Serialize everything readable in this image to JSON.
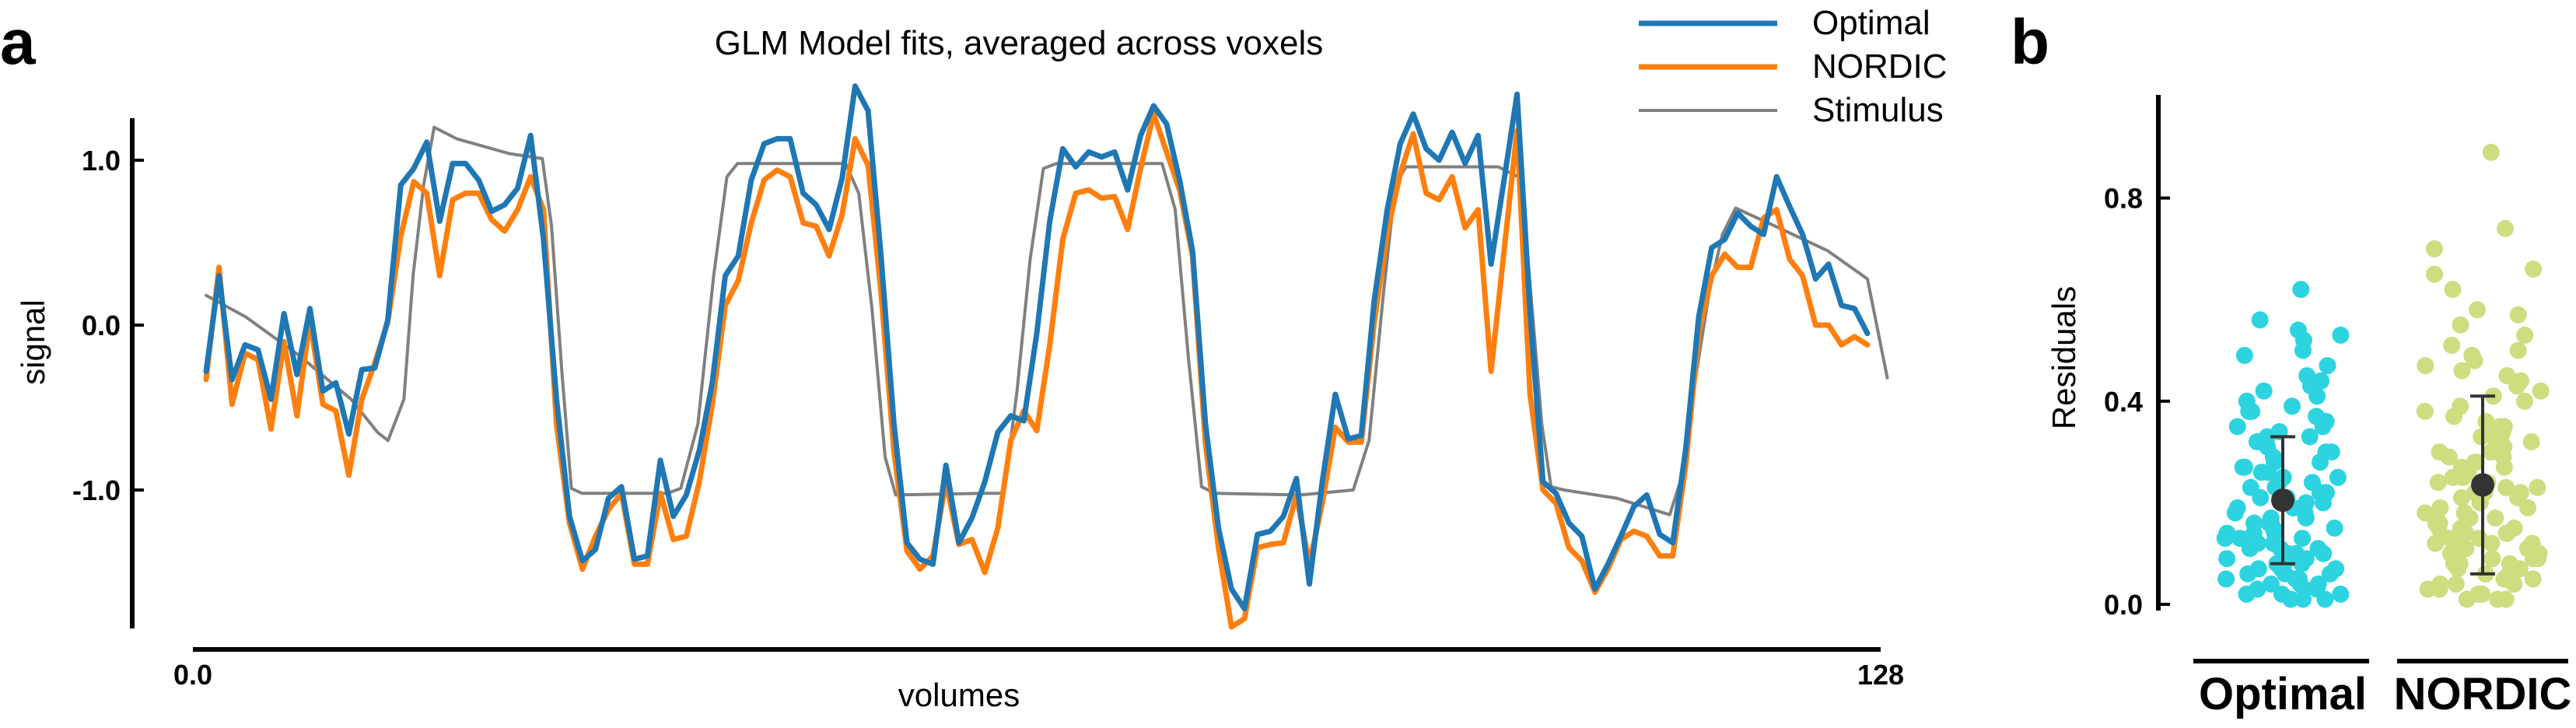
{
  "panel_a_letter": "a",
  "panel_b_letter": "b",
  "chart_data": [
    {
      "type": "line",
      "title": "GLM Model fits, averaged across voxels",
      "xlabel": "volumes",
      "ylabel": "signal",
      "xlim": [
        0,
        128
      ],
      "ylim": [
        -1.75,
        1.25
      ],
      "x_tick_labels": [
        "0.0",
        "128"
      ],
      "y_tick_labels": [
        "1.0",
        "0.0",
        "-1.0"
      ],
      "y_ticks": [
        1.0,
        0.0,
        -1.0
      ],
      "legend_position": "top-right",
      "grid": false,
      "series": [
        {
          "name": "Optimal",
          "color": "#1f77b4",
          "values": [
            -0.28,
            0.3,
            -0.33,
            -0.12,
            -0.15,
            -0.45,
            0.07,
            -0.3,
            0.1,
            -0.4,
            -0.35,
            -0.66,
            -0.27,
            -0.26,
            0.03,
            0.85,
            0.95,
            1.11,
            0.63,
            0.98,
            0.98,
            0.88,
            0.69,
            0.73,
            0.83,
            1.15,
            0.52,
            -0.45,
            -1.16,
            -1.43,
            -1.36,
            -1.05,
            -0.98,
            -1.42,
            -1.4,
            -0.82,
            -1.16,
            -1.03,
            -0.76,
            -0.35,
            0.3,
            0.42,
            0.88,
            1.1,
            1.13,
            1.13,
            0.8,
            0.73,
            0.58,
            0.89,
            1.45,
            1.3,
            0.42,
            -0.6,
            -1.32,
            -1.42,
            -1.45,
            -0.85,
            -1.32,
            -1.17,
            -0.95,
            -0.65,
            -0.55,
            -0.58,
            -0.05,
            0.63,
            1.07,
            0.96,
            1.05,
            1.02,
            1.05,
            0.82,
            1.15,
            1.33,
            1.22,
            0.88,
            0.45,
            -0.6,
            -1.23,
            -1.6,
            -1.72,
            -1.27,
            -1.25,
            -1.16,
            -0.93,
            -1.57,
            -0.95,
            -0.42,
            -0.69,
            -0.67,
            0.15,
            0.7,
            1.1,
            1.28,
            1.07,
            1.0,
            1.17,
            0.98,
            1.15,
            0.37,
            0.88,
            1.4,
            0.08,
            -0.95,
            -1.02,
            -1.2,
            -1.28,
            -1.6,
            -1.45,
            -1.28,
            -1.1,
            -1.03,
            -1.27,
            -1.32,
            -0.75,
            0.05,
            0.47,
            0.52,
            0.68,
            0.6,
            0.55,
            0.9,
            0.72,
            0.55,
            0.28,
            0.37,
            0.12,
            0.1,
            -0.05
          ],
          "values_x": "evenly spaced from 1 to 127"
        },
        {
          "name": "NORDIC",
          "color": "#ff7f0e",
          "values": [
            -0.33,
            0.35,
            -0.48,
            -0.17,
            -0.21,
            -0.63,
            -0.1,
            -0.55,
            0.03,
            -0.48,
            -0.52,
            -0.91,
            -0.45,
            -0.23,
            0.02,
            0.54,
            0.87,
            0.8,
            0.3,
            0.76,
            0.8,
            0.8,
            0.64,
            0.57,
            0.7,
            0.9,
            0.7,
            -0.6,
            -1.2,
            -1.48,
            -1.28,
            -1.12,
            -1.02,
            -1.45,
            -1.45,
            -1.02,
            -1.3,
            -1.28,
            -0.95,
            -0.48,
            0.12,
            0.27,
            0.62,
            0.88,
            0.94,
            0.9,
            0.62,
            0.6,
            0.42,
            0.67,
            1.13,
            0.97,
            0.2,
            -0.77,
            -1.37,
            -1.48,
            -1.4,
            -0.95,
            -1.33,
            -1.3,
            -1.5,
            -1.23,
            -0.7,
            -0.52,
            -0.64,
            -0.12,
            0.52,
            0.8,
            0.82,
            0.77,
            0.78,
            0.58,
            0.95,
            1.28,
            1.05,
            0.82,
            0.42,
            -0.72,
            -1.35,
            -1.83,
            -1.78,
            -1.35,
            -1.33,
            -1.32,
            -1.03,
            -1.45,
            -1.08,
            -0.62,
            -0.71,
            -0.71,
            0.02,
            0.56,
            0.92,
            1.16,
            0.8,
            0.76,
            0.9,
            0.59,
            0.7,
            -0.28,
            0.45,
            1.18,
            -0.42,
            -1.0,
            -1.08,
            -1.35,
            -1.43,
            -1.62,
            -1.48,
            -1.3,
            -1.25,
            -1.28,
            -1.4,
            -1.4,
            -0.85,
            -0.05,
            0.3,
            0.43,
            0.35,
            0.35,
            0.65,
            0.7,
            0.4,
            0.3,
            0.0,
            0.0,
            -0.12,
            -0.07,
            -0.12
          ],
          "values_x": "evenly spaced from 1 to 127"
        },
        {
          "name": "Stimulus",
          "color": "#808080",
          "points": [
            [
              1,
              0.18
            ],
            [
              4,
              0.05
            ],
            [
              8,
              -0.18
            ],
            [
              12,
              -0.45
            ],
            [
              14,
              -0.65
            ],
            [
              14.8,
              -0.7
            ],
            [
              16,
              -0.45
            ],
            [
              16.7,
              0.3
            ],
            [
              17.5,
              0.85
            ],
            [
              18.3,
              1.2
            ],
            [
              20,
              1.13
            ],
            [
              24,
              1.04
            ],
            [
              26.5,
              1.01
            ],
            [
              27.2,
              0.6
            ],
            [
              28,
              -0.3
            ],
            [
              28.7,
              -0.99
            ],
            [
              29.5,
              -1.02
            ],
            [
              36,
              -1.02
            ],
            [
              37,
              -0.99
            ],
            [
              38.3,
              -0.6
            ],
            [
              39.5,
              0.3
            ],
            [
              40.5,
              0.9
            ],
            [
              41.3,
              0.98
            ],
            [
              49.5,
              0.98
            ],
            [
              50.5,
              0.8
            ],
            [
              51.5,
              0.1
            ],
            [
              52.5,
              -0.8
            ],
            [
              53.3,
              -1.03
            ],
            [
              60,
              -1.02
            ],
            [
              61.5,
              -1.02
            ],
            [
              62.5,
              -0.4
            ],
            [
              63.5,
              0.4
            ],
            [
              64.5,
              0.95
            ],
            [
              65.5,
              0.98
            ],
            [
              73.5,
              0.98
            ],
            [
              74.5,
              0.7
            ],
            [
              75.5,
              -0.2
            ],
            [
              76.5,
              -0.98
            ],
            [
              77.5,
              -1.02
            ],
            [
              84,
              -1.03
            ],
            [
              88,
              -1.0
            ],
            [
              89.2,
              -0.7
            ],
            [
              90.3,
              0.2
            ],
            [
              91.2,
              0.85
            ],
            [
              92,
              0.96
            ],
            [
              99,
              0.96
            ],
            [
              100.5,
              0.9
            ],
            [
              101.3,
              0.35
            ],
            [
              102.3,
              -0.6
            ],
            [
              103,
              -0.98
            ],
            [
              104,
              -1.0
            ],
            [
              108,
              -1.05
            ],
            [
              112,
              -1.15
            ],
            [
              113,
              -0.9
            ],
            [
              114,
              -0.3
            ],
            [
              115,
              0.2
            ],
            [
              116,
              0.55
            ],
            [
              117,
              0.71
            ],
            [
              120,
              0.6
            ],
            [
              124,
              0.45
            ],
            [
              127,
              0.28
            ],
            [
              128.5,
              -0.32
            ]
          ]
        }
      ]
    },
    {
      "type": "scatter",
      "xlabel": "",
      "ylabel": "Residuals",
      "ylim": [
        0.0,
        0.85
      ],
      "y_tick_labels": [
        "0.8",
        "0.4",
        "0.0"
      ],
      "y_ticks": [
        0.8,
        0.4,
        0.0
      ],
      "categories": [
        "Optimal",
        "NORDIC"
      ],
      "series": [
        {
          "name": "Optimal",
          "color": "#2dd4e0",
          "mean": 0.205,
          "error_low": 0.08,
          "error_high": 0.33,
          "values": [
            0.62,
            0.56,
            0.54,
            0.53,
            0.52,
            0.5,
            0.49,
            0.47,
            0.45,
            0.44,
            0.43,
            0.42,
            0.41,
            0.4,
            0.39,
            0.38,
            0.38,
            0.37,
            0.36,
            0.35,
            0.35,
            0.34,
            0.33,
            0.33,
            0.32,
            0.31,
            0.3,
            0.3,
            0.29,
            0.28,
            0.28,
            0.27,
            0.27,
            0.26,
            0.26,
            0.25,
            0.25,
            0.24,
            0.24,
            0.23,
            0.23,
            0.22,
            0.22,
            0.21,
            0.21,
            0.2,
            0.2,
            0.19,
            0.19,
            0.18,
            0.18,
            0.17,
            0.17,
            0.16,
            0.16,
            0.16,
            0.15,
            0.15,
            0.14,
            0.14,
            0.14,
            0.13,
            0.13,
            0.13,
            0.12,
            0.12,
            0.12,
            0.11,
            0.11,
            0.11,
            0.1,
            0.1,
            0.1,
            0.09,
            0.09,
            0.09,
            0.08,
            0.08,
            0.08,
            0.07,
            0.07,
            0.07,
            0.06,
            0.06,
            0.06,
            0.05,
            0.05,
            0.05,
            0.04,
            0.04,
            0.04,
            0.03,
            0.03,
            0.03,
            0.02,
            0.02,
            0.02,
            0.01,
            0.01,
            0.01
          ]
        },
        {
          "name": "NORDIC",
          "color": "#cfdc80",
          "mean": 0.235,
          "error_low": 0.06,
          "error_high": 0.41,
          "values": [
            0.89,
            0.74,
            0.7,
            0.66,
            0.65,
            0.62,
            0.58,
            0.57,
            0.55,
            0.53,
            0.51,
            0.5,
            0.49,
            0.48,
            0.47,
            0.46,
            0.45,
            0.44,
            0.43,
            0.42,
            0.41,
            0.4,
            0.39,
            0.38,
            0.37,
            0.36,
            0.35,
            0.35,
            0.34,
            0.33,
            0.32,
            0.32,
            0.31,
            0.3,
            0.3,
            0.29,
            0.29,
            0.28,
            0.27,
            0.27,
            0.26,
            0.26,
            0.25,
            0.25,
            0.24,
            0.24,
            0.23,
            0.23,
            0.22,
            0.22,
            0.21,
            0.21,
            0.2,
            0.2,
            0.19,
            0.19,
            0.18,
            0.18,
            0.17,
            0.17,
            0.16,
            0.16,
            0.16,
            0.15,
            0.15,
            0.14,
            0.14,
            0.14,
            0.13,
            0.13,
            0.12,
            0.12,
            0.12,
            0.11,
            0.11,
            0.1,
            0.1,
            0.1,
            0.09,
            0.09,
            0.08,
            0.08,
            0.08,
            0.07,
            0.07,
            0.06,
            0.06,
            0.06,
            0.05,
            0.05,
            0.04,
            0.04,
            0.04,
            0.03,
            0.03,
            0.02,
            0.02,
            0.01,
            0.01,
            0.01,
            0.12,
            0.18,
            0.22,
            0.28,
            0.33,
            0.15,
            0.09,
            0.05
          ]
        }
      ]
    }
  ]
}
